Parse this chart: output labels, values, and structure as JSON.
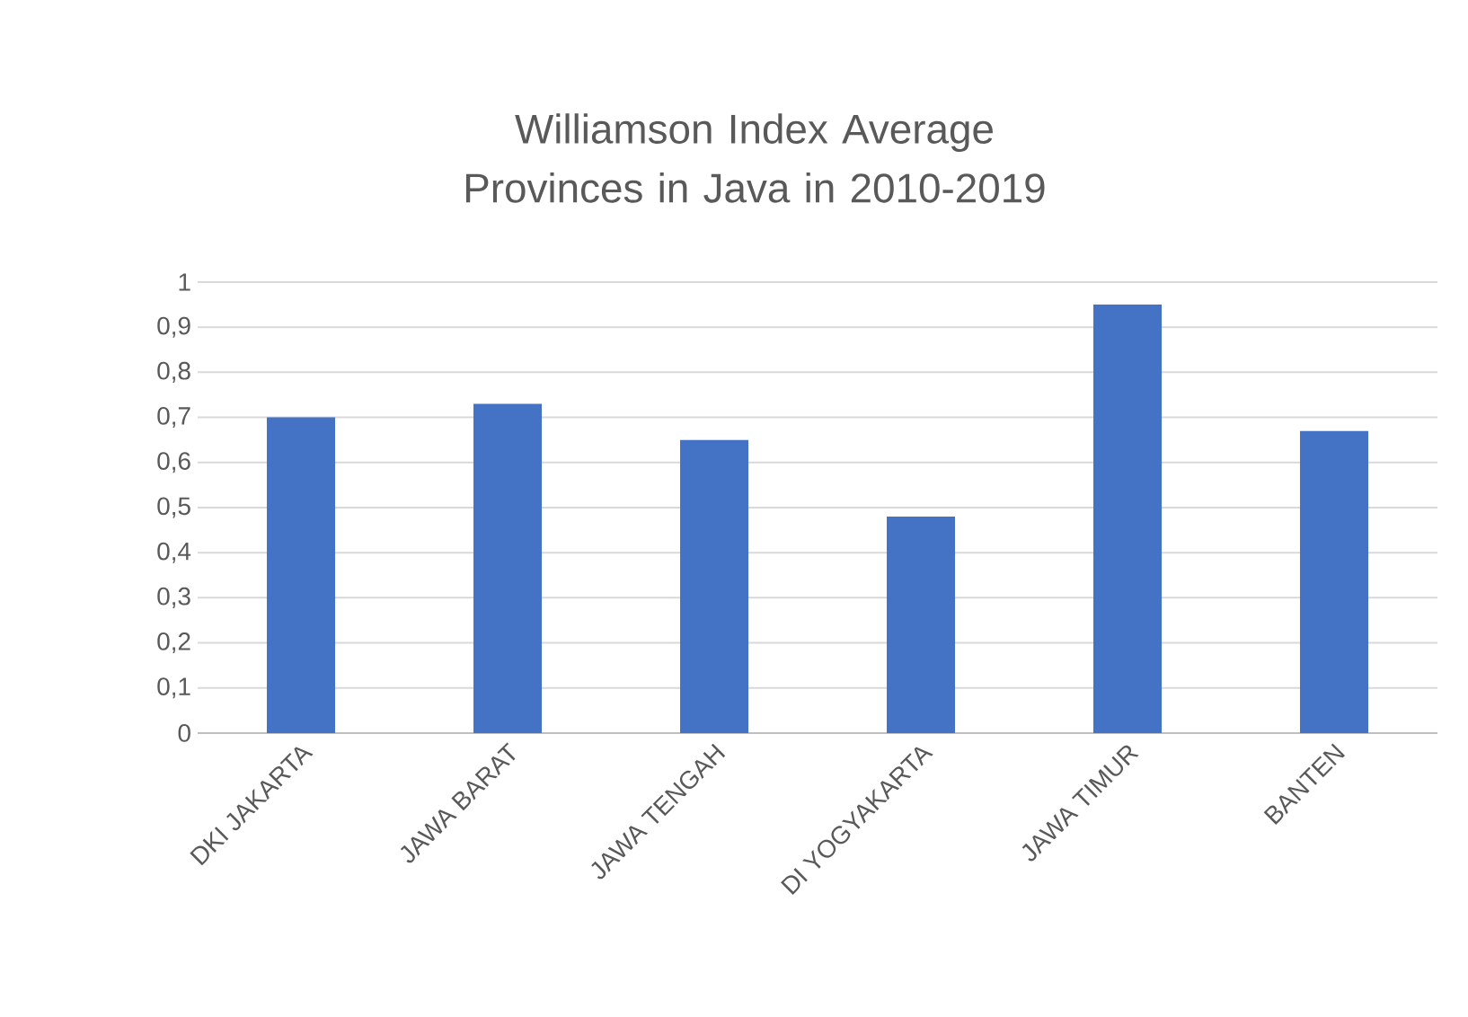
{
  "chart_data": {
    "type": "bar",
    "title": "Williamson Index Average Provinces in Java in 2010-2019",
    "categories": [
      "DKI JAKARTA",
      "JAWA BARAT",
      "JAWA TENGAH",
      "DI YOGYAKARTA",
      "JAWA TIMUR",
      "BANTEN"
    ],
    "values": [
      0.7,
      0.73,
      0.65,
      0.48,
      0.95,
      0.67
    ],
    "color": "#4472c4",
    "ylim": [
      0,
      1
    ],
    "yticks": [
      0,
      {
        "value": 0.1,
        "label": "0,1"
      },
      {
        "value": 0.2,
        "label": "0,2"
      },
      {
        "value": 0.3,
        "label": "0,3"
      },
      {
        "value": 0.4,
        "label": "0,4"
      },
      {
        "value": 0.5,
        "label": "0,5"
      },
      {
        "value": 0.6,
        "label": "0,6"
      },
      {
        "value": 0.7,
        "label": "0,7"
      },
      {
        "value": 0.8,
        "label": "0,8"
      },
      {
        "value": 0.9,
        "label": "0,9"
      },
      1
    ],
    "grid": "y"
  }
}
